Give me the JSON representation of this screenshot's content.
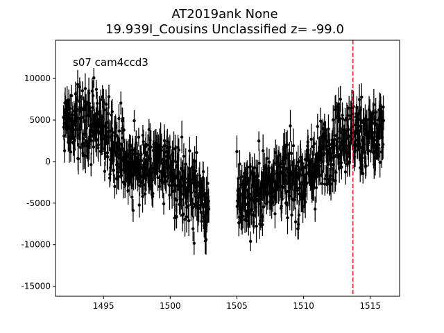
{
  "chart_data": {
    "type": "scatter",
    "title": "AT2019ank  None",
    "subtitle": "19.939I_Cousins Unclassified z= -99.0",
    "annotation": "s07 cam4ccd3",
    "xlabel": "",
    "ylabel": "",
    "xlim": [
      1491.4,
      1517.2
    ],
    "ylim": [
      -16200,
      14600
    ],
    "x_ticks": [
      1495,
      1500,
      1505,
      1510,
      1515
    ],
    "y_ticks": [
      -15000,
      -10000,
      -5000,
      0,
      5000,
      10000
    ],
    "grid": false,
    "marker_color": "#000000",
    "vline": {
      "x": 1513.7,
      "color": "#d62728",
      "style": "dashed"
    },
    "segments": [
      {
        "x_start": 1492.0,
        "x_end": 1502.9,
        "baseline": [
          [
            1492.0,
            4000
          ],
          [
            1493.5,
            3500
          ],
          [
            1494.5,
            5000
          ],
          [
            1496.0,
            2000
          ],
          [
            1497.5,
            -1000
          ],
          [
            1499.0,
            0
          ],
          [
            1500.5,
            -2500
          ],
          [
            1502.0,
            -3500
          ],
          [
            1502.9,
            -6000
          ]
        ]
      },
      {
        "x_start": 1505.0,
        "x_end": 1516.0,
        "baseline": [
          [
            1505.0,
            -4500
          ],
          [
            1506.5,
            -3500
          ],
          [
            1508.0,
            -1500
          ],
          [
            1509.5,
            -2500
          ],
          [
            1511.0,
            -500
          ],
          [
            1512.5,
            3000
          ],
          [
            1514.0,
            3500
          ],
          [
            1516.0,
            3000
          ]
        ]
      }
    ],
    "scatter_amplitude": 3200,
    "error_bar_size": 1600,
    "points_per_day": 48
  }
}
